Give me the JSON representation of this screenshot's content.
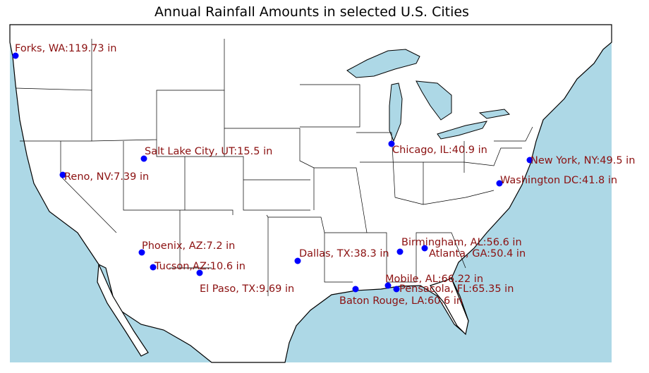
{
  "title": "Annual Rainfall Amounts in selected U.S. Cities",
  "colors": {
    "ocean": "#add8e6",
    "land": "#ffffff",
    "border": "#000000",
    "marker": "#0000ff",
    "label": "#8b1010"
  },
  "cities": [
    {
      "label": "Forks, WA:119.73 in"
    },
    {
      "label": "Salt Lake City, UT:15.5 in"
    },
    {
      "label": "Reno, NV:7.39 in"
    },
    {
      "label": "Phoenix, AZ:7.2 in"
    },
    {
      "label": "Tucson,AZ:10.6 in"
    },
    {
      "label": "El Paso, TX:9.69 in"
    },
    {
      "label": "Dallas, TX:38.3 in"
    },
    {
      "label": "Chicago, IL:40.9 in"
    },
    {
      "label": "New York, NY:49.5 in"
    },
    {
      "label": "Washington DC:41.8 in"
    },
    {
      "label": "Birmingham, AL:56.6 in"
    },
    {
      "label": "Atlanta, GA:50.4 in"
    },
    {
      "label": "Mobile, AL:66.22 in"
    },
    {
      "label": "Pensacola, FL:65.35 in"
    },
    {
      "label": "Baton Rouge, LA:60.6 in"
    }
  ]
}
